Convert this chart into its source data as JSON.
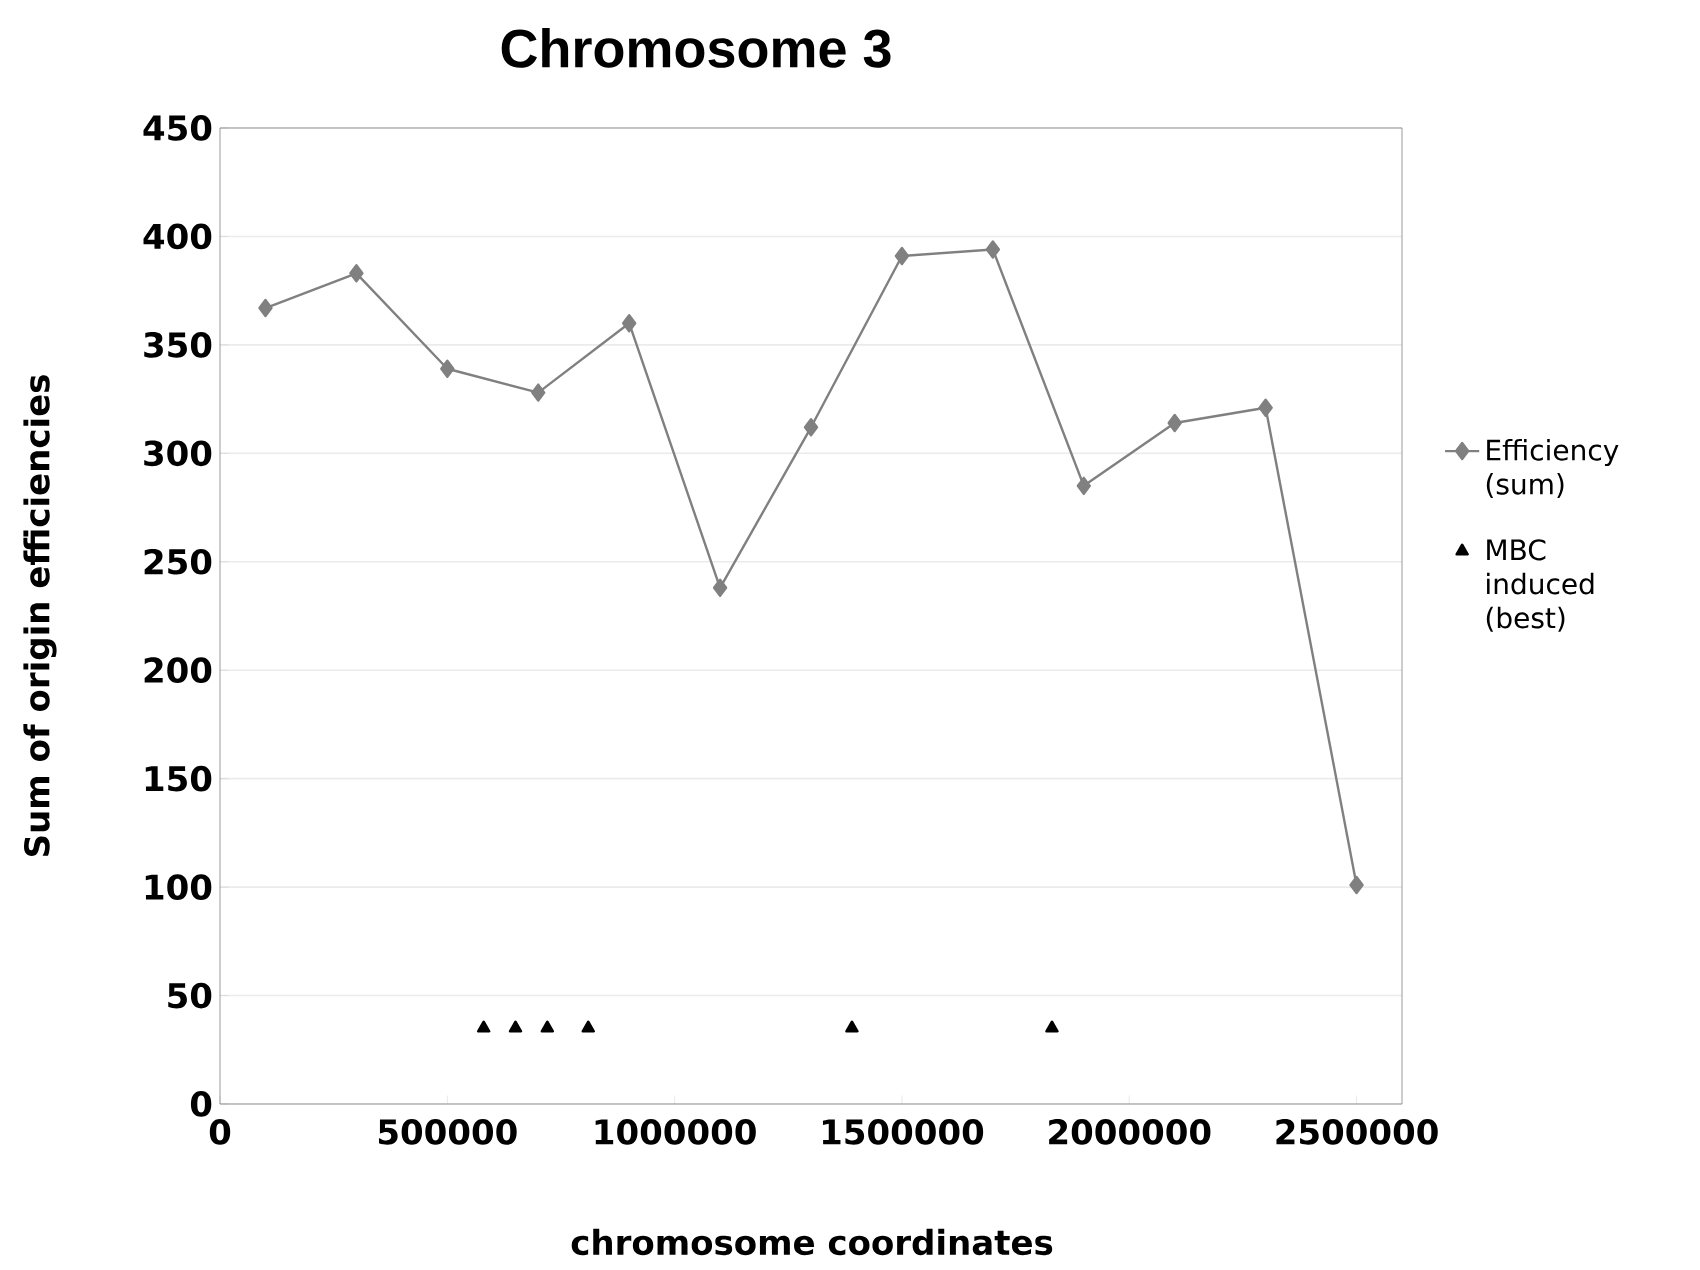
{
  "chart_data": {
    "type": "line",
    "title": "Chromosome 3",
    "xlabel": "chromosome coordinates",
    "ylabel": "Sum of origin efficiencies",
    "series": [
      {
        "name": "Efficiency (sum)",
        "marker": "diamond",
        "color": "#808080",
        "x": [
          100000,
          300000,
          500000,
          700000,
          900000,
          1100000,
          1300000,
          1500000,
          1700000,
          1900000,
          2100000,
          2300000,
          2500000
        ],
        "values": [
          367,
          383,
          339,
          328,
          360,
          238,
          312,
          391,
          394,
          285,
          314,
          321,
          101
        ]
      },
      {
        "name": "MBC induced (best)",
        "type": "scatter",
        "marker": "triangle",
        "color": "#000000",
        "x": [
          580000,
          650000,
          720000,
          810000,
          1390000,
          1830000
        ],
        "values": [
          35,
          35,
          35,
          35,
          35,
          35
        ]
      }
    ],
    "xlim": [
      0,
      2600000
    ],
    "xticks": [
      0,
      500000,
      1000000,
      1500000,
      2000000,
      2500000
    ],
    "ylim": [
      0,
      450
    ],
    "yticks": [
      0,
      50,
      100,
      150,
      200,
      250,
      300,
      350,
      400,
      450
    ],
    "grid": "y",
    "legend": "right"
  }
}
